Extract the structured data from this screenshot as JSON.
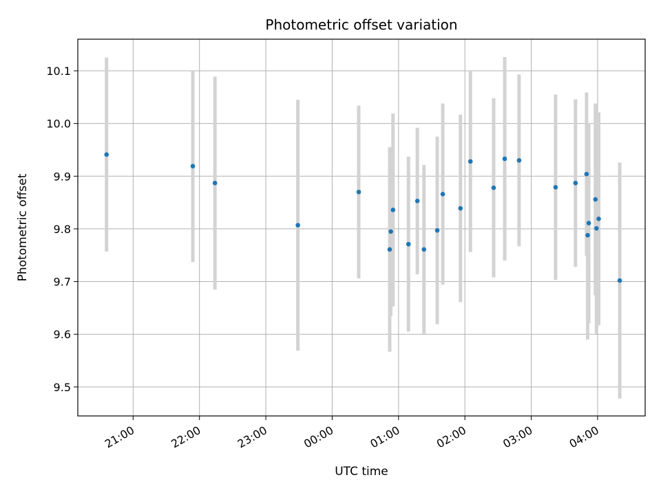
{
  "chart_data": {
    "type": "scatter",
    "title": "Photometric offset variation",
    "xlabel": "UTC time",
    "ylabel": "Photometric offset",
    "ylim": [
      9.445,
      10.16
    ],
    "xlim": [
      "20:10",
      "04:43"
    ],
    "grid": true,
    "x_ticks": [
      "21:00",
      "22:00",
      "23:00",
      "00:00",
      "01:00",
      "02:00",
      "03:00",
      "04:00"
    ],
    "y_ticks": [
      9.5,
      9.6,
      9.7,
      9.8,
      9.9,
      10.0,
      10.1
    ],
    "y_tick_labels": [
      "9.5",
      "9.6",
      "9.7",
      "9.8",
      "9.9",
      "10.0",
      "10.1"
    ],
    "point_color": "#1f77b4",
    "errorbar_color": "#d3d3d3",
    "series": [
      {
        "points": [
          {
            "t": "20:36",
            "y": 9.941,
            "yerr": 0.184
          },
          {
            "t": "21:54",
            "y": 9.919,
            "yerr": 0.182
          },
          {
            "t": "22:14",
            "y": 9.887,
            "yerr": 0.202
          },
          {
            "t": "23:29",
            "y": 9.807,
            "yerr": 0.238
          },
          {
            "t": "00:24",
            "y": 9.87,
            "yerr": 0.164
          },
          {
            "t": "00:52",
            "y": 9.761,
            "yerr": 0.194
          },
          {
            "t": "00:53",
            "y": 9.795,
            "yerr": 0.16
          },
          {
            "t": "00:55",
            "y": 9.836,
            "yerr": 0.183
          },
          {
            "t": "01:09",
            "y": 9.771,
            "yerr": 0.166
          },
          {
            "t": "01:17",
            "y": 9.853,
            "yerr": 0.139
          },
          {
            "t": "01:23",
            "y": 9.761,
            "yerr": 0.16
          },
          {
            "t": "01:35",
            "y": 9.797,
            "yerr": 0.178
          },
          {
            "t": "01:40",
            "y": 9.866,
            "yerr": 0.172
          },
          {
            "t": "01:56",
            "y": 9.839,
            "yerr": 0.178
          },
          {
            "t": "02:05",
            "y": 9.928,
            "yerr": 0.172
          },
          {
            "t": "02:26",
            "y": 9.878,
            "yerr": 0.17
          },
          {
            "t": "02:36",
            "y": 9.933,
            "yerr": 0.193
          },
          {
            "t": "02:49",
            "y": 9.93,
            "yerr": 0.163
          },
          {
            "t": "03:22",
            "y": 9.879,
            "yerr": 0.176
          },
          {
            "t": "03:40",
            "y": 9.887,
            "yerr": 0.159
          },
          {
            "t": "03:50",
            "y": 9.904,
            "yerr": 0.155
          },
          {
            "t": "03:51",
            "y": 9.788,
            "yerr": 0.198
          },
          {
            "t": "03:52",
            "y": 9.811,
            "yerr": 0.19
          },
          {
            "t": "03:58",
            "y": 9.856,
            "yerr": 0.182
          },
          {
            "t": "03:59",
            "y": 9.801,
            "yerr": 0.2
          },
          {
            "t": "04:01",
            "y": 9.819,
            "yerr": 0.202
          },
          {
            "t": "04:20",
            "y": 9.702,
            "yerr": 0.224
          }
        ]
      }
    ]
  }
}
